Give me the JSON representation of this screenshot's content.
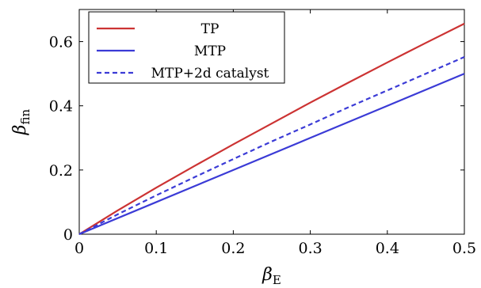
{
  "chart_data": {
    "type": "line",
    "xlabel": {
      "symbol": "β",
      "subscript": "E"
    },
    "ylabel": {
      "symbol": "β",
      "subscript": "fin"
    },
    "xlim": [
      0,
      0.5
    ],
    "ylim": [
      0,
      0.7
    ],
    "x_ticks": [
      0,
      0.1,
      0.2,
      0.3,
      0.4,
      0.5
    ],
    "x_tick_labels": [
      "0",
      "0.1",
      "0.2",
      "0.3",
      "0.4",
      "0.5"
    ],
    "y_ticks": [
      0,
      0.2,
      0.4,
      0.6
    ],
    "y_tick_labels": [
      "0",
      "0.2",
      "0.4",
      "0.6"
    ],
    "grid": false,
    "legend_position": "top-left",
    "series": [
      {
        "name": "TP",
        "color": "#cc3333",
        "style": "solid",
        "x": [
          0,
          0.05,
          0.1,
          0.15,
          0.2,
          0.25,
          0.3,
          0.35,
          0.4,
          0.45,
          0.5
        ],
        "y": [
          0,
          0.074,
          0.145,
          0.213,
          0.28,
          0.345,
          0.41,
          0.473,
          0.535,
          0.596,
          0.656
        ]
      },
      {
        "name": "MTP",
        "color": "#3b3bd6",
        "style": "solid",
        "x": [
          0,
          0.1,
          0.2,
          0.3,
          0.4,
          0.5
        ],
        "y": [
          0,
          0.1,
          0.2,
          0.3,
          0.4,
          0.5
        ]
      },
      {
        "name": "MTP+2d catalyst",
        "color": "#3b3bd6",
        "style": "dashed",
        "x": [
          0,
          0.05,
          0.1,
          0.15,
          0.2,
          0.25,
          0.3,
          0.35,
          0.4,
          0.45,
          0.5
        ],
        "y": [
          0,
          0.062,
          0.121,
          0.178,
          0.234,
          0.289,
          0.342,
          0.396,
          0.448,
          0.5,
          0.552
        ]
      }
    ]
  }
}
